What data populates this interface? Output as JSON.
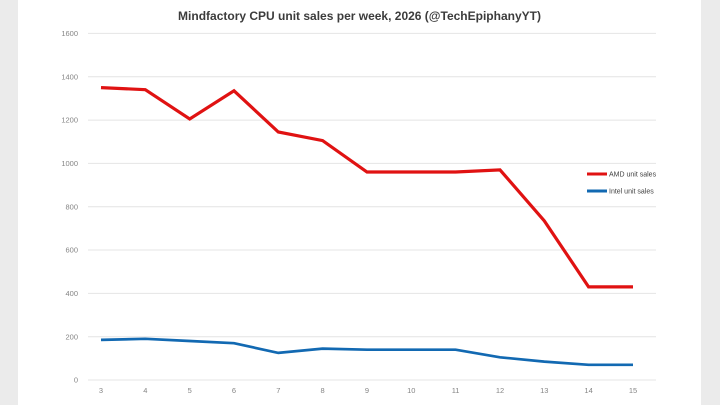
{
  "page": {
    "background_color": "#ebebeb",
    "card_background_color": "#ffffff"
  },
  "chart_data": {
    "type": "line",
    "title": "Mindfactory CPU unit sales per week, 2026 (@TechEpiphanyYT)",
    "xlabel": "",
    "ylabel": "",
    "x": [
      3,
      4,
      5,
      6,
      7,
      8,
      9,
      10,
      11,
      12,
      13,
      14,
      15
    ],
    "series": [
      {
        "name": "AMD unit sales",
        "color": "#e01212",
        "stroke_width": 3.2,
        "values": [
          1350,
          1340,
          1205,
          1335,
          1145,
          1105,
          960,
          960,
          960,
          970,
          735,
          430,
          430
        ]
      },
      {
        "name": "Intel unit sales",
        "color": "#1269b2",
        "stroke_width": 2.7,
        "values": [
          185,
          190,
          180,
          170,
          125,
          145,
          140,
          140,
          140,
          105,
          85,
          70,
          70
        ]
      }
    ],
    "ylim": [
      0,
      1600
    ],
    "ytick_step": 200,
    "yticks": [
      0,
      200,
      400,
      600,
      800,
      1000,
      1200,
      1400,
      1600
    ],
    "grid": "horizontal",
    "gridline_color": "#e4e4e4",
    "tick_label_color": "#858585",
    "legend_position": "right-middle",
    "legend_entries": [
      "AMD unit sales",
      "Intel unit sales"
    ]
  }
}
